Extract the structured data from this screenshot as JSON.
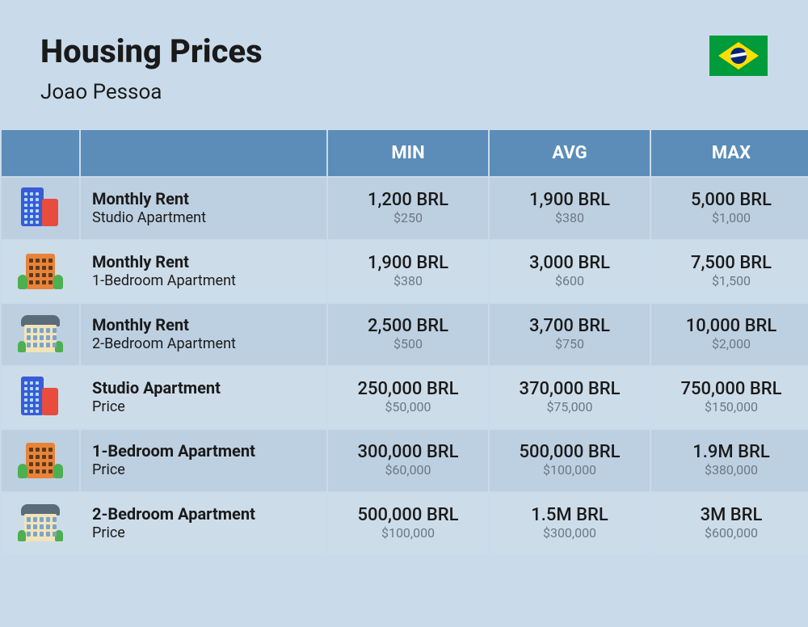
{
  "header": {
    "title": "Housing Prices",
    "subtitle": "Joao Pessoa",
    "flag": "brazil-flag"
  },
  "columns": {
    "min": "MIN",
    "avg": "AVG",
    "max": "MAX"
  },
  "colors": {
    "page_bg": "#c9dbea",
    "header_bg": "#5b8db8",
    "row_odd_bg": "#bdd0e1",
    "row_even_bg": "#cddce9",
    "text_primary": "#1a1a1a",
    "text_secondary": "#6b7886"
  },
  "rows": [
    {
      "icon": "tall-buildings-icon",
      "title": "Monthly Rent",
      "sub": "Studio Apartment",
      "min": {
        "primary": "1,200 BRL",
        "secondary": "$250"
      },
      "avg": {
        "primary": "1,900 BRL",
        "secondary": "$380"
      },
      "max": {
        "primary": "5,000 BRL",
        "secondary": "$1,000"
      }
    },
    {
      "icon": "medium-building-icon",
      "title": "Monthly Rent",
      "sub": "1-Bedroom Apartment",
      "min": {
        "primary": "1,900 BRL",
        "secondary": "$380"
      },
      "avg": {
        "primary": "3,000 BRL",
        "secondary": "$600"
      },
      "max": {
        "primary": "7,500 BRL",
        "secondary": "$1,500"
      }
    },
    {
      "icon": "house-icon",
      "title": "Monthly Rent",
      "sub": "2-Bedroom Apartment",
      "min": {
        "primary": "2,500 BRL",
        "secondary": "$500"
      },
      "avg": {
        "primary": "3,700 BRL",
        "secondary": "$750"
      },
      "max": {
        "primary": "10,000 BRL",
        "secondary": "$2,000"
      }
    },
    {
      "icon": "tall-buildings-icon",
      "title": "Studio Apartment",
      "sub": "Price",
      "min": {
        "primary": "250,000 BRL",
        "secondary": "$50,000"
      },
      "avg": {
        "primary": "370,000 BRL",
        "secondary": "$75,000"
      },
      "max": {
        "primary": "750,000 BRL",
        "secondary": "$150,000"
      }
    },
    {
      "icon": "medium-building-icon",
      "title": "1-Bedroom Apartment",
      "sub": "Price",
      "min": {
        "primary": "300,000 BRL",
        "secondary": "$60,000"
      },
      "avg": {
        "primary": "500,000 BRL",
        "secondary": "$100,000"
      },
      "max": {
        "primary": "1.9M BRL",
        "secondary": "$380,000"
      }
    },
    {
      "icon": "house-icon",
      "title": "2-Bedroom Apartment",
      "sub": "Price",
      "min": {
        "primary": "500,000 BRL",
        "secondary": "$100,000"
      },
      "avg": {
        "primary": "1.5M BRL",
        "secondary": "$300,000"
      },
      "max": {
        "primary": "3M BRL",
        "secondary": "$600,000"
      }
    }
  ]
}
